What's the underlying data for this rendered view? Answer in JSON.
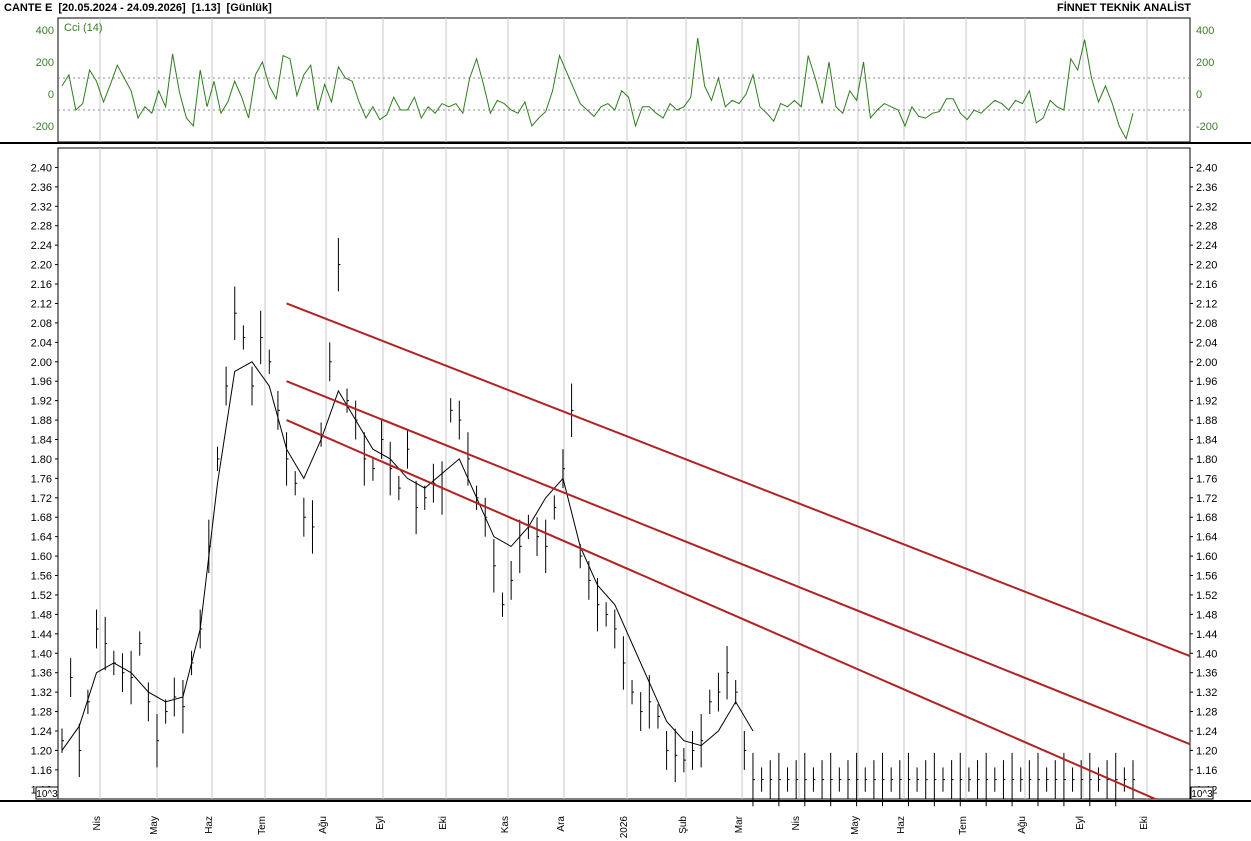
{
  "header": {
    "left": "CANTE E  [20.05.2024 - 24.09.2026]  [1.13]  [Günlük]",
    "right": "FİNNET TEKNİK ANALİST"
  },
  "colors": {
    "price": "#000000",
    "moving_average": "#000000",
    "cci": "#2e7d1e",
    "channel": "#b22222",
    "grid": "#c8c8c8",
    "axis_text": "#000000",
    "cci_axis_text": "#3a7d2a"
  },
  "chart_data": [
    {
      "type": "line",
      "legend": "Cci (14)",
      "ylim": [
        -300,
        400
      ],
      "yticks": [
        400,
        200,
        0,
        -200
      ],
      "reference_lines": [
        100,
        -100
      ],
      "series": [
        {
          "name": "Cci (14)",
          "x": [
            0,
            4,
            8,
            12,
            16,
            20,
            24,
            28,
            32,
            36,
            40,
            44,
            48,
            52,
            56,
            60,
            64,
            68,
            72,
            76,
            80,
            84,
            88,
            92,
            96,
            100,
            104,
            108,
            112,
            116,
            120,
            124,
            128,
            132,
            136,
            140,
            144,
            148,
            152,
            156,
            160,
            164,
            168,
            172,
            176,
            180,
            184,
            188,
            192,
            196,
            200,
            204,
            208,
            212,
            216,
            220,
            224,
            228,
            232,
            236,
            240,
            244,
            248,
            252,
            256,
            260,
            264,
            268,
            272,
            276,
            280,
            284,
            288,
            292,
            296,
            300,
            304,
            308,
            312,
            316,
            320,
            324,
            328,
            332,
            336,
            340,
            344,
            348,
            352,
            356,
            360,
            364,
            368,
            372,
            376,
            380,
            384,
            388,
            392,
            396,
            400,
            404,
            408,
            412,
            416,
            420,
            424,
            428,
            432,
            436,
            440,
            444,
            448,
            452,
            456,
            460,
            464,
            468,
            472,
            476,
            480,
            484,
            488,
            492,
            496,
            500,
            504,
            508,
            512,
            516,
            520,
            524,
            528,
            532,
            536,
            540,
            544,
            548,
            552,
            556,
            560,
            564,
            568,
            572,
            576,
            580,
            584,
            588,
            592,
            596,
            600,
            604,
            608,
            612,
            616,
            620
          ],
          "values": [
            50,
            120,
            -100,
            -60,
            150,
            80,
            -50,
            60,
            180,
            100,
            20,
            -150,
            -80,
            -120,
            20,
            -80,
            250,
            10,
            -150,
            -200,
            150,
            -80,
            80,
            -120,
            -50,
            80,
            -20,
            -150,
            120,
            200,
            50,
            -30,
            240,
            220,
            -10,
            120,
            180,
            -100,
            60,
            -50,
            170,
            100,
            80,
            -50,
            -150,
            -80,
            -160,
            -130,
            -20,
            -100,
            -100,
            -20,
            -150,
            -80,
            -120,
            -60,
            -80,
            -60,
            -120,
            100,
            220,
            60,
            -120,
            -40,
            -60,
            -100,
            -120,
            -50,
            -200,
            -150,
            -110,
            20,
            240,
            140,
            40,
            -60,
            -100,
            -140,
            -80,
            -60,
            -100,
            20,
            -20,
            -200,
            -80,
            -80,
            -120,
            -150,
            -60,
            -100,
            -80,
            -20,
            350,
            50,
            -40,
            100,
            -80,
            -40,
            -60,
            0,
            120,
            -80,
            -120,
            -170,
            -60,
            -80,
            -40,
            -80,
            240,
            100,
            -60,
            200,
            -80,
            -120,
            20,
            -40,
            200,
            -150,
            -100,
            -60,
            -80,
            -100,
            -200,
            -80,
            -140,
            -150,
            -120,
            -110,
            -30,
            -30,
            -120,
            -160,
            -100,
            -120,
            -80,
            -40,
            -60,
            -100,
            -40,
            -60,
            20,
            -180,
            -150,
            -40,
            -80,
            -100,
            220,
            150,
            340,
            100,
            -50,
            50,
            -60,
            -200,
            -280,
            -120
          ]
        }
      ]
    },
    {
      "type": "line",
      "ylim": [
        1.1,
        2.44
      ],
      "yticks": [
        "2.40",
        "2.36",
        "2.32",
        "2.28",
        "2.24",
        "2.20",
        "2.16",
        "2.12",
        "2.08",
        "2.04",
        "2.00",
        "1.96",
        "1.92",
        "1.88",
        "1.84",
        "1.80",
        "1.76",
        "1.72",
        "1.68",
        "1.64",
        "1.60",
        "1.56",
        "1.52",
        "1.48",
        "1.44",
        "1.40",
        "1.36",
        "1.32",
        "1.28",
        "1.24",
        "1.20",
        "1.16",
        "1.12"
      ],
      "x_tick_labels": [
        "Nis",
        "May",
        "Haz",
        "Tem",
        "Ağu",
        "Eyl",
        "Eki",
        "Kas",
        "Ara",
        "2026",
        "Şub",
        "Mar",
        "Nis",
        "May",
        "Haz",
        "Tem",
        "Ağu",
        "Eyl",
        "Eki"
      ],
      "scale_label": "10^3",
      "series": [
        {
          "name": "Close",
          "x": [
            0,
            5,
            10,
            15,
            20,
            25,
            30,
            35,
            40,
            45,
            50,
            55,
            60,
            65,
            70,
            75,
            80,
            85,
            90,
            95,
            100,
            105,
            110,
            115,
            120,
            125,
            130,
            135,
            140,
            145,
            150,
            155,
            160,
            165,
            170,
            175,
            180,
            185,
            190,
            195,
            200,
            205,
            210,
            215,
            220,
            225,
            230,
            235,
            240,
            245,
            250,
            255,
            260,
            265,
            270,
            275,
            280,
            285,
            290,
            295,
            300,
            305,
            310,
            315,
            320,
            325,
            330,
            335,
            340,
            345,
            350,
            355,
            360,
            365,
            370,
            375,
            380,
            385,
            390,
            395,
            400,
            405,
            410,
            415,
            420,
            425,
            430,
            435,
            440,
            445,
            450,
            455,
            460,
            465,
            470,
            475,
            480,
            485,
            490,
            495,
            500,
            505,
            510,
            515,
            520,
            525,
            530,
            535,
            540,
            545,
            550,
            555,
            560,
            565,
            570,
            575,
            580,
            585,
            590,
            595,
            600,
            605,
            610,
            615,
            620
          ],
          "values": [
            1.22,
            1.35,
            1.2,
            1.3,
            1.45,
            1.42,
            1.38,
            1.36,
            1.35,
            1.42,
            1.3,
            1.22,
            1.28,
            1.31,
            1.29,
            1.38,
            1.45,
            1.62,
            1.8,
            1.95,
            2.1,
            2.05,
            1.95,
            2.05,
            2.0,
            1.9,
            1.8,
            1.75,
            1.68,
            1.66,
            1.85,
            2.0,
            2.2,
            1.92,
            1.88,
            1.8,
            1.78,
            1.84,
            1.78,
            1.74,
            1.82,
            1.7,
            1.72,
            1.75,
            1.74,
            1.9,
            1.88,
            1.8,
            1.72,
            1.68,
            1.58,
            1.5,
            1.55,
            1.62,
            1.66,
            1.64,
            1.62,
            1.7,
            1.78,
            1.9,
            1.6,
            1.55,
            1.5,
            1.48,
            1.45,
            1.38,
            1.32,
            1.28,
            1.3,
            1.27,
            1.2,
            1.19,
            1.18,
            1.2,
            1.22,
            1.3,
            1.32,
            1.36,
            1.32,
            1.2,
            1.14,
            1.14,
            1.14,
            1.14,
            1.14,
            1.14,
            1.14,
            1.14,
            1.14,
            1.14,
            1.14,
            1.14,
            1.14,
            1.14,
            1.14,
            1.14,
            1.14,
            1.14,
            1.14,
            1.14,
            1.14,
            1.14,
            1.14,
            1.14,
            1.14,
            1.14,
            1.14,
            1.14,
            1.14,
            1.14,
            1.14,
            1.14,
            1.14,
            1.14,
            1.14,
            1.14,
            1.14,
            1.14,
            1.14,
            1.14,
            1.14,
            1.14,
            1.14,
            1.14,
            1.14
          ]
        },
        {
          "name": "MA",
          "x": [
            0,
            10,
            20,
            30,
            40,
            50,
            60,
            70,
            80,
            90,
            100,
            110,
            120,
            130,
            140,
            150,
            160,
            170,
            180,
            190,
            200,
            210,
            220,
            230,
            240,
            250,
            260,
            270,
            280,
            290,
            300,
            310,
            320,
            330,
            340,
            350,
            360,
            370,
            380,
            390,
            400
          ],
          "values": [
            1.2,
            1.25,
            1.36,
            1.38,
            1.36,
            1.32,
            1.3,
            1.31,
            1.45,
            1.75,
            1.98,
            2.0,
            1.95,
            1.82,
            1.76,
            1.84,
            1.94,
            1.88,
            1.82,
            1.8,
            1.76,
            1.74,
            1.77,
            1.8,
            1.72,
            1.64,
            1.62,
            1.66,
            1.72,
            1.76,
            1.62,
            1.54,
            1.5,
            1.42,
            1.34,
            1.26,
            1.22,
            1.21,
            1.24,
            1.3,
            1.24
          ]
        }
      ],
      "channel_lines": [
        {
          "x": [
            130,
            620
          ],
          "values": [
            2.12,
            1.44
          ]
        },
        {
          "x": [
            130,
            620
          ],
          "values": [
            1.96,
            1.26
          ]
        },
        {
          "x": [
            130,
            620
          ],
          "values": [
            1.88,
            1.12
          ]
        }
      ]
    }
  ]
}
